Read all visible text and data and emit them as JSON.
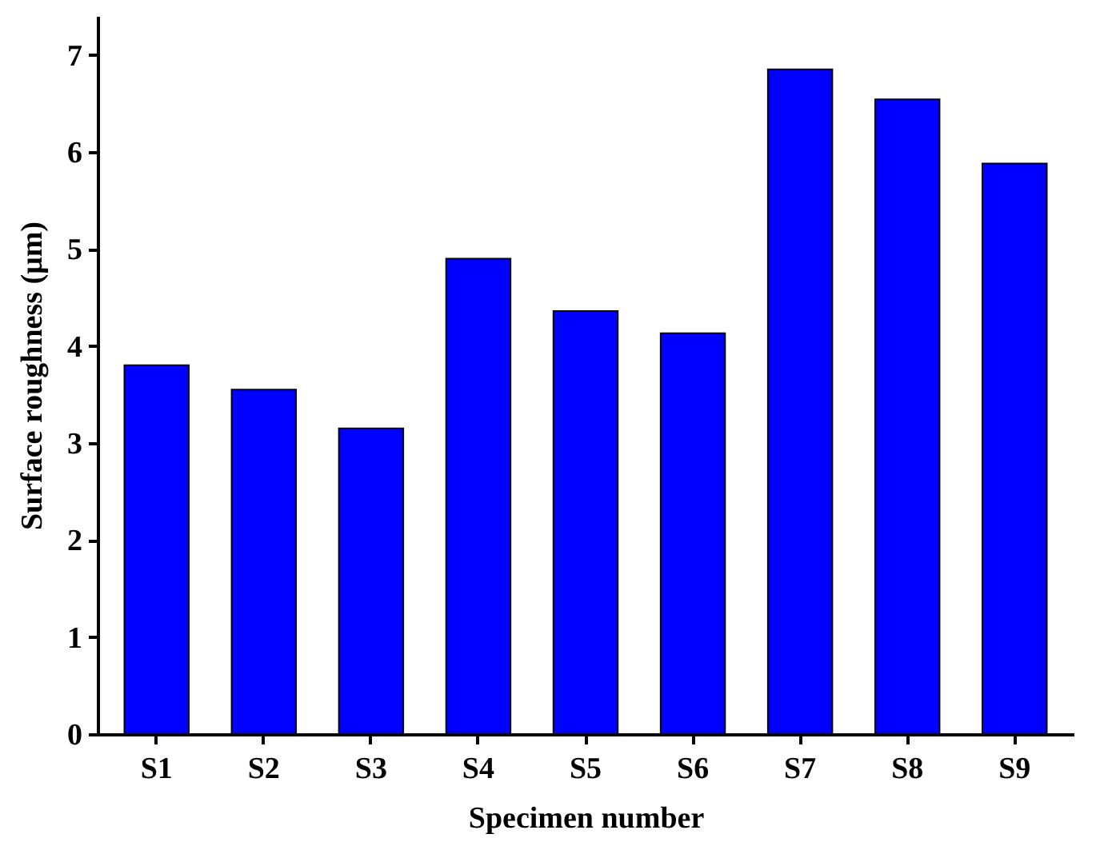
{
  "chart_data": {
    "type": "bar",
    "xlabel": "Specimen number",
    "ylabel": "Surface roughness (μm)",
    "categories": [
      "S1",
      "S2",
      "S3",
      "S4",
      "S5",
      "S6",
      "S7",
      "S8",
      "S9"
    ],
    "values": [
      3.8,
      3.55,
      3.15,
      4.9,
      4.36,
      4.13,
      6.85,
      6.54,
      5.88
    ],
    "color": "#0000ff",
    "ylim": [
      0,
      7.4
    ],
    "yticks": [
      0,
      1,
      2,
      3,
      4,
      5,
      6,
      7
    ],
    "grid": false
  }
}
